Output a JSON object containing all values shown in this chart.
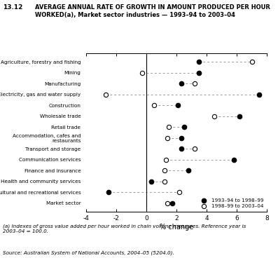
{
  "categories": [
    "Agriculture, forestry and fishing",
    "Mining",
    "Manufacturing",
    "Electricity, gas and water supply",
    "Construction",
    "Wholesale trade",
    "Retail trade",
    "Accommodation, cafes and\nrestaurants",
    "Transport and storage",
    "Communication services",
    "Finance and insurance",
    "Health and community services",
    "Cultural and recreational services",
    "Market sector"
  ],
  "series1_name": "1993–94 to 1998–99",
  "series2_name": "1998–99 to 2003–04",
  "series1_values": [
    3.5,
    3.5,
    2.3,
    7.5,
    2.1,
    6.2,
    2.5,
    2.3,
    2.3,
    5.8,
    2.8,
    0.3,
    -2.5,
    1.7
  ],
  "series2_values": [
    7.0,
    -0.3,
    3.2,
    -2.7,
    0.5,
    4.5,
    1.5,
    1.4,
    3.2,
    1.3,
    1.2,
    1.2,
    2.2,
    1.4
  ],
  "xlim": [
    -4,
    8
  ],
  "xticks": [
    -4,
    -2,
    0,
    2,
    4,
    6,
    8
  ],
  "xlabel": "% change",
  "title_num": "13.12",
  "title_text": "AVERAGE ANNUAL RATE OF GROWTH IN AMOUNT PRODUCED PER HOUR\nWORKED(a), Market sector industries — 1993–94 to 2003–04",
  "footnote1": "(a) Indexes of gross value added per hour worked in chain volume measures. Reference year is\n2003–04 = 100.0.",
  "footnote2": "Source: Australian System of National Accounts, 2004–05 (5204.0).",
  "background_color": "white"
}
